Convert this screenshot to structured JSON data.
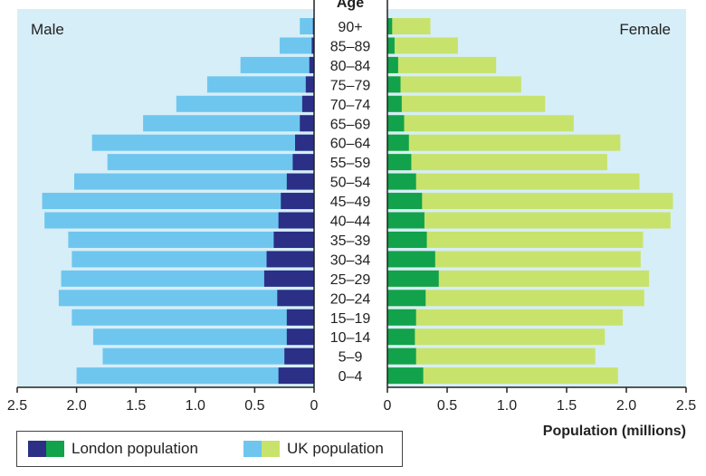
{
  "chart_data": {
    "type": "bar",
    "orientation": "horizontal",
    "variant": "population-pyramid",
    "age_axis_label": "Age",
    "male_label": "Male",
    "female_label": "Female",
    "xlabel": "Population (millions)",
    "xlim": [
      0,
      2.5
    ],
    "male_ticks": [
      "2.5",
      "2.0",
      "1.5",
      "1.0",
      "0.5",
      "0"
    ],
    "female_ticks": [
      "0",
      "0.5",
      "1.0",
      "1.5",
      "2.0",
      "2.5"
    ],
    "categories": [
      "90+",
      "85–89",
      "80–84",
      "75–79",
      "70–74",
      "65–69",
      "60–64",
      "55–59",
      "50–54",
      "45–49",
      "40–44",
      "35–39",
      "30–34",
      "25–29",
      "20–24",
      "15–19",
      "10–14",
      "5–9",
      "0–4"
    ],
    "series": [
      {
        "name": "UK population",
        "sex": "male",
        "values": [
          0.12,
          0.29,
          0.62,
          0.9,
          1.16,
          1.44,
          1.87,
          1.74,
          2.02,
          2.29,
          2.27,
          2.07,
          2.04,
          2.13,
          2.15,
          2.04,
          1.86,
          1.78,
          2.0
        ]
      },
      {
        "name": "London population",
        "sex": "male",
        "values": [
          0.01,
          0.02,
          0.04,
          0.07,
          0.1,
          0.12,
          0.16,
          0.18,
          0.23,
          0.28,
          0.3,
          0.34,
          0.4,
          0.42,
          0.31,
          0.23,
          0.23,
          0.25,
          0.3
        ]
      },
      {
        "name": "UK population",
        "sex": "female",
        "values": [
          0.36,
          0.59,
          0.91,
          1.12,
          1.32,
          1.56,
          1.95,
          1.84,
          2.11,
          2.39,
          2.37,
          2.14,
          2.12,
          2.19,
          2.15,
          1.97,
          1.82,
          1.74,
          1.93
        ]
      },
      {
        "name": "London population",
        "sex": "female",
        "values": [
          0.04,
          0.06,
          0.09,
          0.11,
          0.12,
          0.14,
          0.18,
          0.2,
          0.24,
          0.29,
          0.31,
          0.33,
          0.4,
          0.43,
          0.32,
          0.24,
          0.23,
          0.24,
          0.3
        ]
      }
    ],
    "colors": {
      "male_uk": "#6ec6ee",
      "male_london": "#2b2f86",
      "female_uk": "#c8e36b",
      "female_london": "#12a24b",
      "panel_bg": "#d6eef8"
    },
    "grid": false,
    "legend": "bottom-left"
  },
  "legend": {
    "london_label": "London population",
    "uk_label": "UK population"
  }
}
